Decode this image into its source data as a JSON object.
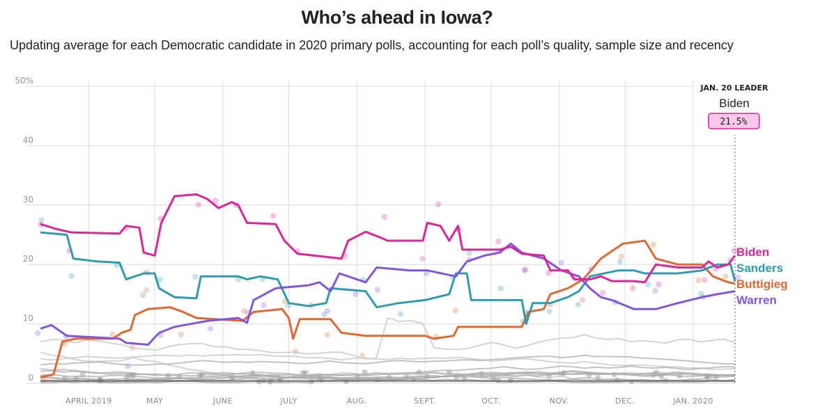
{
  "title": "Who’s ahead in Iowa?",
  "subtitle": "Updating average for each Democratic candidate in 2020 primary polls, accounting for each poll’s quality, sample size and recency",
  "leader": {
    "heading": "JAN. 20 LEADER",
    "name": "Biden",
    "value": "21.5%"
  },
  "chart_data": {
    "type": "line",
    "title": "Who’s ahead in Iowa?",
    "subtitle": "Updating average for each Democratic candidate in 2020 primary polls, accounting for each poll’s quality, sample size and recency",
    "x_tick_labels": [
      "APRIL 2019",
      "MAY",
      "JUNE",
      "JULY",
      "AUG.",
      "SEPT.",
      "OCT.",
      "NOV.",
      "DEC.",
      "JAN. 2020"
    ],
    "x_tick_dates": [
      "2019-04-01",
      "2019-05-01",
      "2019-06-01",
      "2019-07-01",
      "2019-08-01",
      "2019-09-01",
      "2019-10-01",
      "2019-11-01",
      "2019-12-01",
      "2020-01-01"
    ],
    "xlim": [
      "2019-03-10",
      "2020-01-20"
    ],
    "y_tick_labels": [
      "50%",
      "40",
      "30",
      "20",
      "10",
      "0"
    ],
    "y_tick_values": [
      50,
      40,
      30,
      20,
      10,
      0
    ],
    "ylim": [
      0,
      50
    ],
    "grid": true,
    "series": [
      {
        "name": "Biden",
        "color": "#e0239a",
        "points": [
          [
            "2019-03-10",
            26.8
          ],
          [
            "2019-03-17",
            26
          ],
          [
            "2019-03-24",
            25.4
          ],
          [
            "2019-04-15",
            25.2
          ],
          [
            "2019-04-18",
            26.5
          ],
          [
            "2019-04-24",
            26.2
          ],
          [
            "2019-04-26",
            22
          ],
          [
            "2019-05-01",
            21.5
          ],
          [
            "2019-05-04",
            27
          ],
          [
            "2019-05-10",
            31.5
          ],
          [
            "2019-05-20",
            31.8
          ],
          [
            "2019-05-25",
            31
          ],
          [
            "2019-05-30",
            29.5
          ],
          [
            "2019-06-05",
            30.5
          ],
          [
            "2019-06-08",
            30
          ],
          [
            "2019-06-12",
            27
          ],
          [
            "2019-06-25",
            26.8
          ],
          [
            "2019-06-29",
            24
          ],
          [
            "2019-07-05",
            21.8
          ],
          [
            "2019-07-25",
            21
          ],
          [
            "2019-07-28",
            24
          ],
          [
            "2019-08-05",
            25.5
          ],
          [
            "2019-08-12",
            24.5
          ],
          [
            "2019-08-15",
            24
          ],
          [
            "2019-08-31",
            24
          ],
          [
            "2019-09-02",
            27
          ],
          [
            "2019-09-08",
            26.5
          ],
          [
            "2019-09-12",
            24
          ],
          [
            "2019-09-16",
            26.5
          ],
          [
            "2019-09-18",
            22.5
          ],
          [
            "2019-10-05",
            22.5
          ],
          [
            "2019-10-10",
            23
          ],
          [
            "2019-10-15",
            21.8
          ],
          [
            "2019-10-25",
            21.5
          ],
          [
            "2019-10-28",
            19
          ],
          [
            "2019-11-05",
            19
          ],
          [
            "2019-11-08",
            17.5
          ],
          [
            "2019-11-15",
            17.5
          ],
          [
            "2019-11-20",
            18
          ],
          [
            "2019-11-25",
            17.2
          ],
          [
            "2019-12-05",
            17.2
          ],
          [
            "2019-12-10",
            17
          ],
          [
            "2019-12-15",
            20
          ],
          [
            "2019-12-25",
            19.5
          ],
          [
            "2020-01-05",
            19.5
          ],
          [
            "2020-01-08",
            20.5
          ],
          [
            "2020-01-12",
            19.5
          ],
          [
            "2020-01-17",
            20
          ],
          [
            "2020-01-20",
            21.5
          ]
        ]
      },
      {
        "name": "Sanders",
        "color": "#2a9db0",
        "points": [
          [
            "2019-03-10",
            25.4
          ],
          [
            "2019-03-22",
            25
          ],
          [
            "2019-03-25",
            21
          ],
          [
            "2019-04-05",
            20.5
          ],
          [
            "2019-04-15",
            20.3
          ],
          [
            "2019-04-18",
            17.5
          ],
          [
            "2019-04-26",
            18.5
          ],
          [
            "2019-05-01",
            18.5
          ],
          [
            "2019-05-03",
            16
          ],
          [
            "2019-05-10",
            14.5
          ],
          [
            "2019-05-20",
            14.3
          ],
          [
            "2019-05-22",
            18
          ],
          [
            "2019-06-08",
            18
          ],
          [
            "2019-06-12",
            17.5
          ],
          [
            "2019-06-18",
            18
          ],
          [
            "2019-06-26",
            17.5
          ],
          [
            "2019-07-01",
            13.5
          ],
          [
            "2019-07-10",
            13
          ],
          [
            "2019-07-18",
            13.5
          ],
          [
            "2019-07-20",
            16
          ],
          [
            "2019-08-05",
            15.5
          ],
          [
            "2019-08-10",
            12.8
          ],
          [
            "2019-08-20",
            13.5
          ],
          [
            "2019-09-01",
            14
          ],
          [
            "2019-09-12",
            15
          ],
          [
            "2019-09-15",
            18.5
          ],
          [
            "2019-09-20",
            18.5
          ],
          [
            "2019-09-22",
            14
          ],
          [
            "2019-10-05",
            14
          ],
          [
            "2019-10-15",
            14
          ],
          [
            "2019-10-17",
            10
          ],
          [
            "2019-10-20",
            13.5
          ],
          [
            "2019-10-28",
            13.5
          ],
          [
            "2019-11-05",
            14.5
          ],
          [
            "2019-11-10",
            15.5
          ],
          [
            "2019-11-15",
            18
          ],
          [
            "2019-11-28",
            19
          ],
          [
            "2019-12-05",
            19
          ],
          [
            "2019-12-10",
            18.5
          ],
          [
            "2019-12-25",
            18.5
          ],
          [
            "2020-01-05",
            19
          ],
          [
            "2020-01-12",
            20
          ],
          [
            "2020-01-18",
            20
          ],
          [
            "2020-01-20",
            17.2
          ]
        ]
      },
      {
        "name": "Buttigieg",
        "color": "#e3672e",
        "points": [
          [
            "2019-03-10",
            1
          ],
          [
            "2019-03-16",
            1.5
          ],
          [
            "2019-03-20",
            7
          ],
          [
            "2019-03-26",
            7.5
          ],
          [
            "2019-04-12",
            7.5
          ],
          [
            "2019-04-16",
            8.5
          ],
          [
            "2019-04-20",
            9
          ],
          [
            "2019-04-22",
            11.5
          ],
          [
            "2019-04-28",
            12.5
          ],
          [
            "2019-05-08",
            12.8
          ],
          [
            "2019-05-14",
            12
          ],
          [
            "2019-05-20",
            11
          ],
          [
            "2019-06-10",
            10.5
          ],
          [
            "2019-06-15",
            12
          ],
          [
            "2019-06-28",
            12.5
          ],
          [
            "2019-07-01",
            11
          ],
          [
            "2019-07-03",
            7.5
          ],
          [
            "2019-07-06",
            10.8
          ],
          [
            "2019-07-20",
            10.8
          ],
          [
            "2019-07-25",
            8.5
          ],
          [
            "2019-08-05",
            8
          ],
          [
            "2019-09-01",
            8
          ],
          [
            "2019-09-05",
            7.5
          ],
          [
            "2019-09-14",
            8
          ],
          [
            "2019-09-16",
            9.5
          ],
          [
            "2019-10-15",
            9.5
          ],
          [
            "2019-10-18",
            12
          ],
          [
            "2019-10-25",
            12.5
          ],
          [
            "2019-10-28",
            15
          ],
          [
            "2019-11-05",
            16
          ],
          [
            "2019-11-12",
            17.5
          ],
          [
            "2019-11-20",
            21
          ],
          [
            "2019-11-30",
            23.5
          ],
          [
            "2019-12-10",
            24
          ],
          [
            "2019-12-15",
            21
          ],
          [
            "2019-12-25",
            20
          ],
          [
            "2020-01-05",
            20
          ],
          [
            "2020-01-10",
            18
          ],
          [
            "2020-01-17",
            17
          ],
          [
            "2020-01-20",
            16.8
          ]
        ]
      },
      {
        "name": "Warren",
        "color": "#8155de",
        "points": [
          [
            "2019-03-10",
            9.2
          ],
          [
            "2019-03-15",
            9.8
          ],
          [
            "2019-03-22",
            8
          ],
          [
            "2019-04-15",
            7.5
          ],
          [
            "2019-04-18",
            6.8
          ],
          [
            "2019-04-28",
            6.5
          ],
          [
            "2019-05-03",
            8.5
          ],
          [
            "2019-05-10",
            9.5
          ],
          [
            "2019-05-25",
            10.5
          ],
          [
            "2019-06-08",
            11
          ],
          [
            "2019-06-12",
            10.2
          ],
          [
            "2019-06-15",
            14
          ],
          [
            "2019-06-20",
            15
          ],
          [
            "2019-06-25",
            16
          ],
          [
            "2019-07-10",
            16.5
          ],
          [
            "2019-07-15",
            17
          ],
          [
            "2019-07-20",
            15.5
          ],
          [
            "2019-07-24",
            18.5
          ],
          [
            "2019-08-01",
            17.5
          ],
          [
            "2019-08-05",
            17
          ],
          [
            "2019-08-10",
            19.5
          ],
          [
            "2019-08-25",
            19
          ],
          [
            "2019-09-02",
            19
          ],
          [
            "2019-09-15",
            18
          ],
          [
            "2019-09-20",
            20.5
          ],
          [
            "2019-09-28",
            21.5
          ],
          [
            "2019-10-05",
            22
          ],
          [
            "2019-10-10",
            23.5
          ],
          [
            "2019-10-15",
            22
          ],
          [
            "2019-10-25",
            21
          ],
          [
            "2019-11-02",
            19
          ],
          [
            "2019-11-10",
            18
          ],
          [
            "2019-11-15",
            16
          ],
          [
            "2019-11-20",
            14.5
          ],
          [
            "2019-11-25",
            14
          ],
          [
            "2019-12-05",
            12.5
          ],
          [
            "2019-12-15",
            12.5
          ],
          [
            "2019-12-25",
            13.5
          ],
          [
            "2020-01-05",
            14.5
          ],
          [
            "2020-01-12",
            15
          ],
          [
            "2020-01-20",
            15.5
          ]
        ]
      }
    ],
    "other_candidates_color": "#c8c8c8"
  }
}
